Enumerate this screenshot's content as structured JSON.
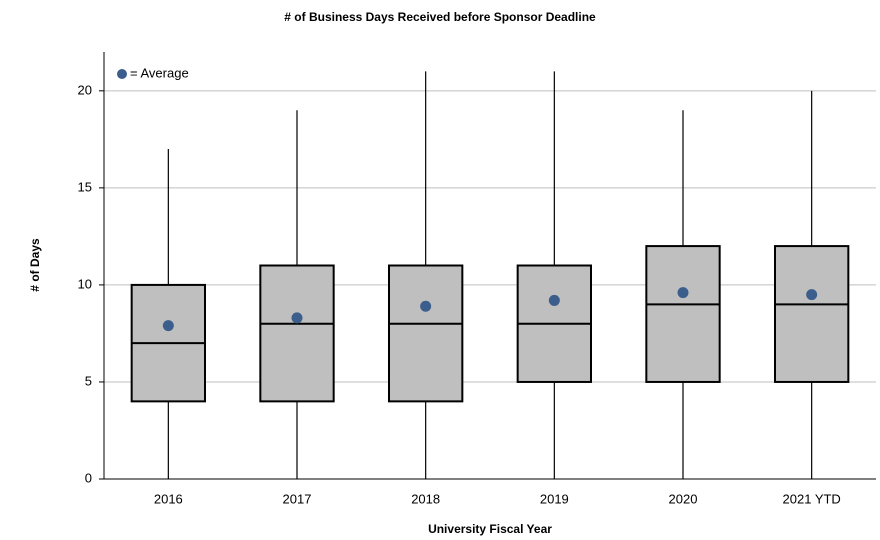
{
  "chart_data": {
    "type": "box",
    "title": "# of Business Days Received before Sponsor Deadline",
    "x_label": "University Fiscal Year",
    "y_label": "# of Days",
    "legend_label": "= Average",
    "categories": [
      "2016",
      "2017",
      "2018",
      "2019",
      "2020",
      "2021 YTD"
    ],
    "min": [
      0,
      0,
      0,
      0,
      0,
      0
    ],
    "q1": [
      4,
      4,
      4,
      5,
      5,
      5
    ],
    "median": [
      7,
      8,
      8,
      8,
      9,
      9
    ],
    "q3": [
      10,
      11,
      11,
      11,
      12,
      12
    ],
    "max": [
      17,
      19,
      21,
      21,
      19,
      20
    ],
    "mean": [
      7.9,
      8.3,
      8.9,
      9.2,
      9.6,
      9.5
    ],
    "box_color": "#bfbfbf",
    "mean_color": "#3b5e8c",
    "ylim": [
      0,
      22
    ],
    "yticks": [
      0,
      5,
      10,
      15,
      20
    ],
    "grid": true
  }
}
